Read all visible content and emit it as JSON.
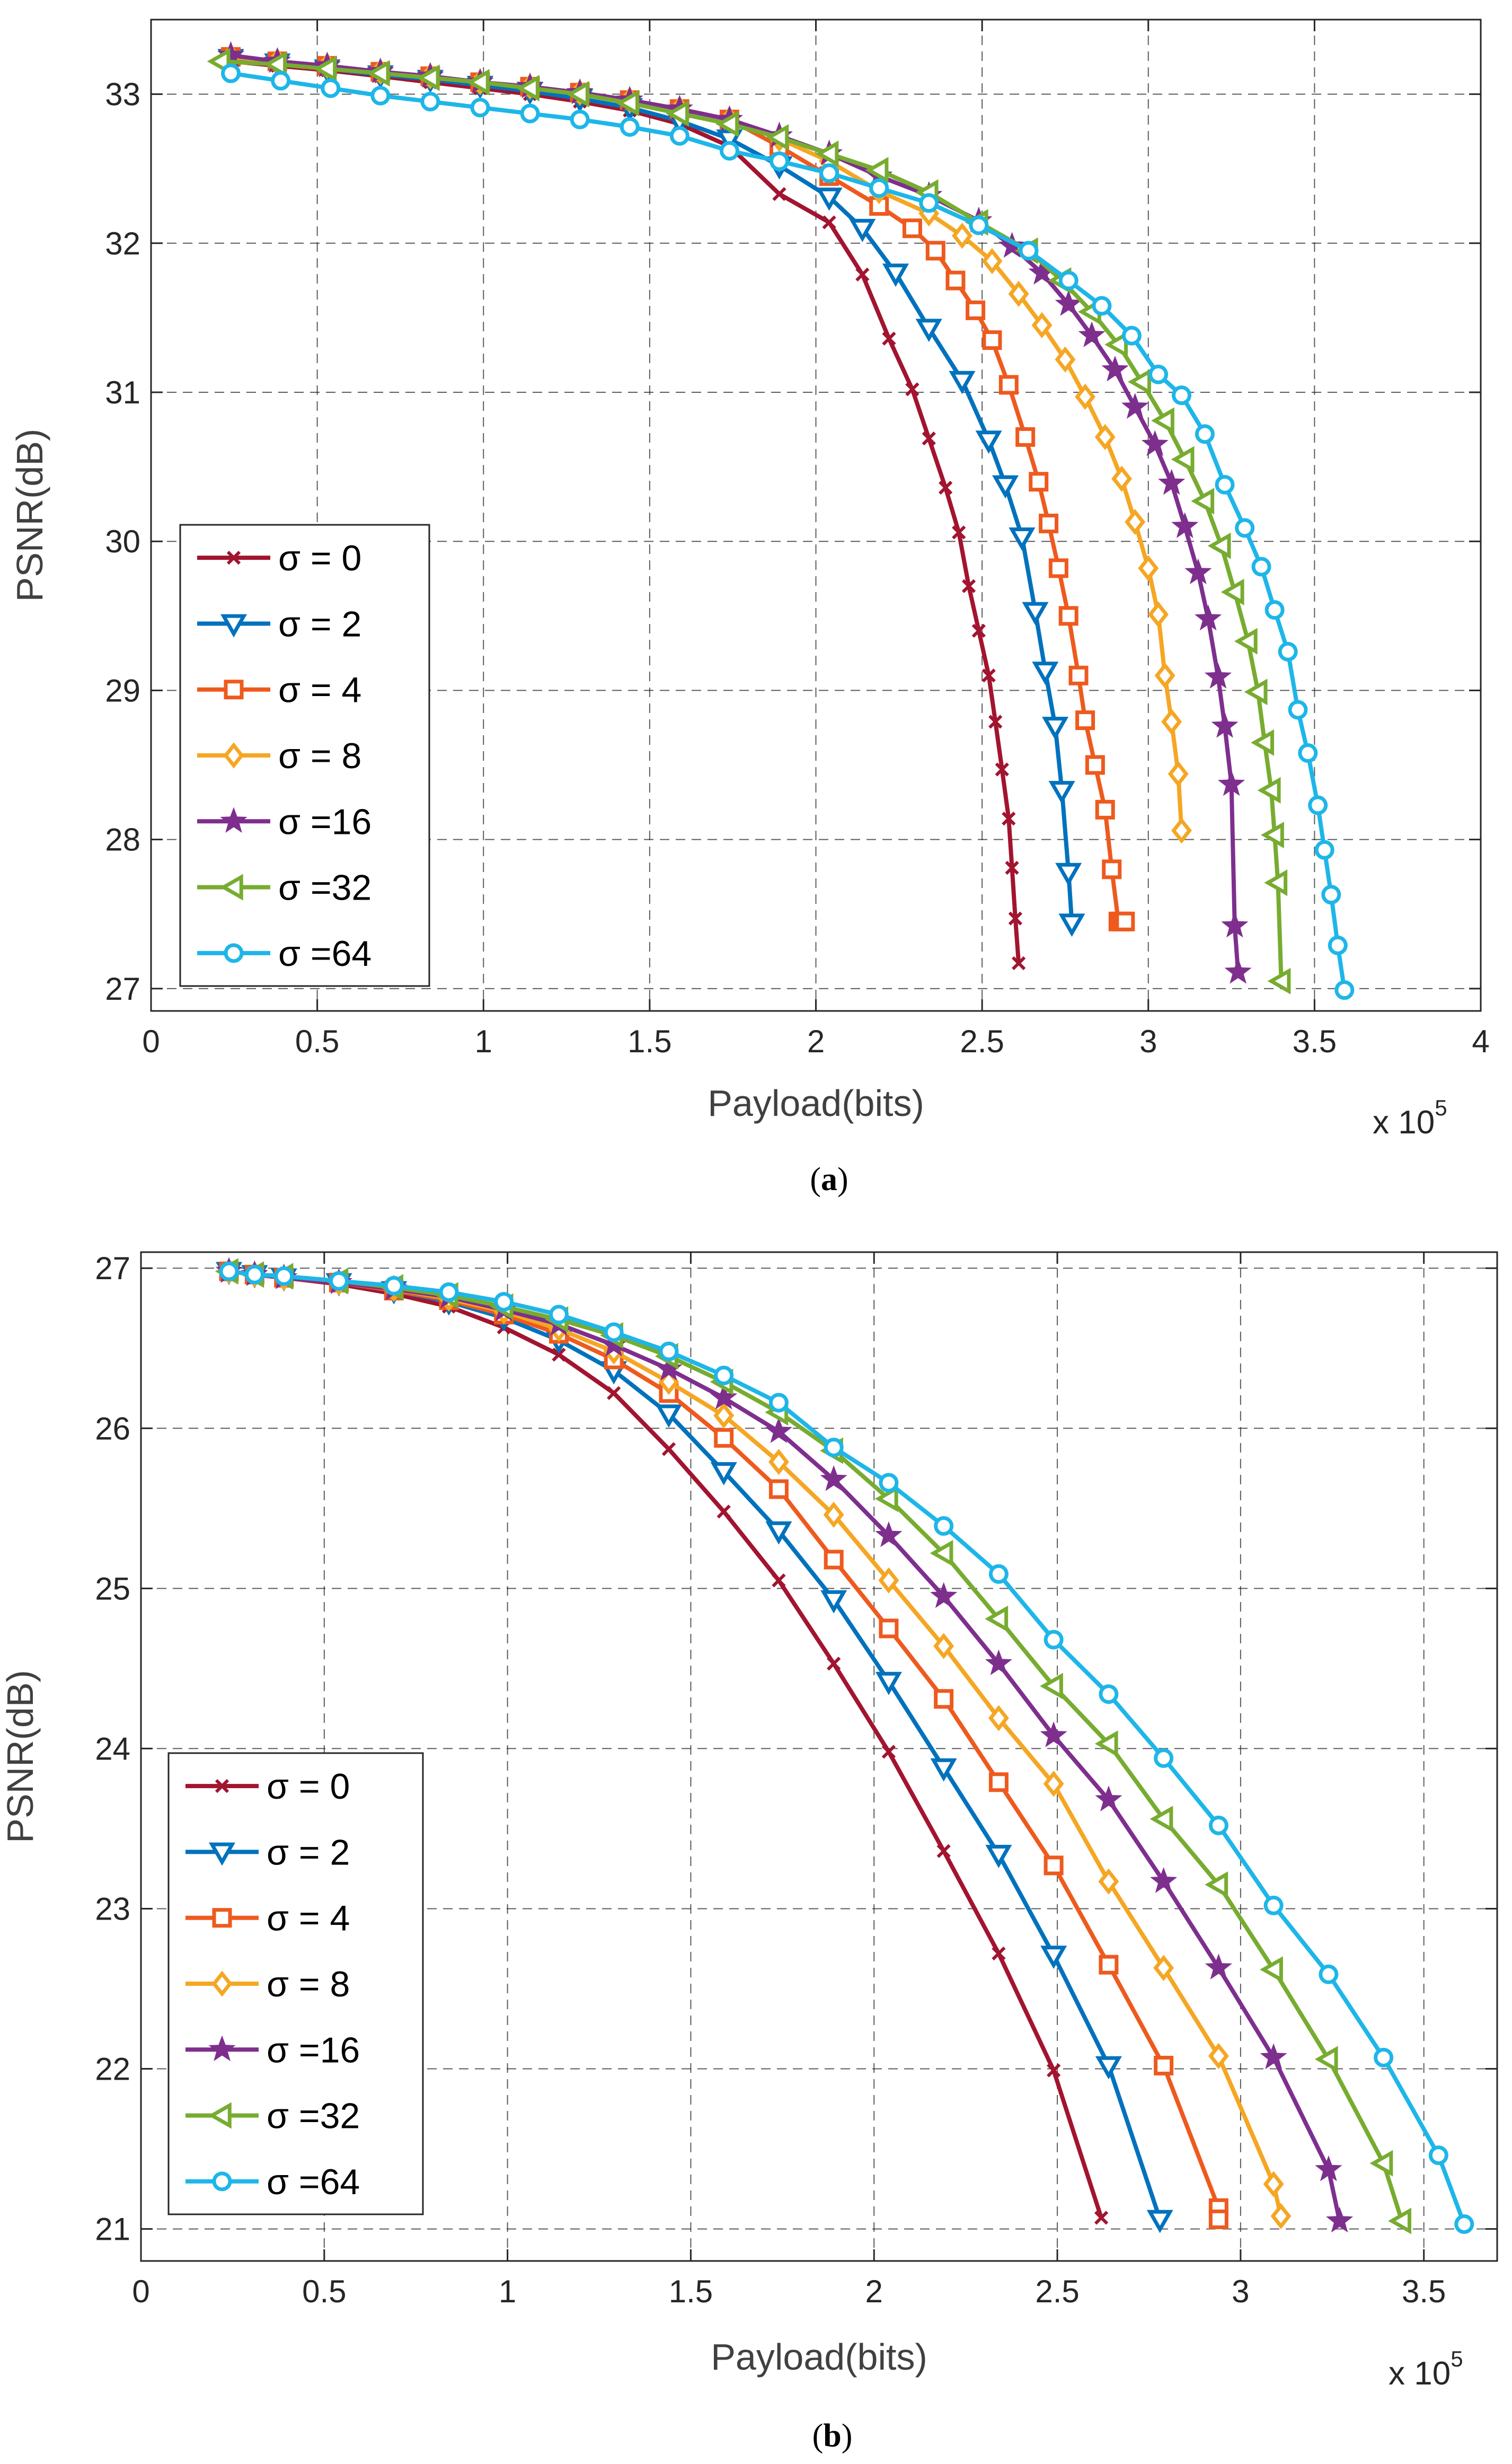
{
  "chart_data": [
    {
      "type": "line",
      "panel": "a",
      "caption": "(a)",
      "caption_letter": "a",
      "xlabel": "Payload(bits)",
      "ylabel": "PSNR(dB)",
      "x_multiplier_prefix": "x 10",
      "x_multiplier_exponent": "5",
      "xlim": [
        0,
        4
      ],
      "ylim": [
        26.85,
        33.5
      ],
      "xticks": [
        0,
        0.5,
        1,
        1.5,
        2,
        2.5,
        3,
        3.5,
        4
      ],
      "xtick_labels": [
        "0",
        "0.5",
        "1",
        "1.5",
        "2",
        "2.5",
        "3",
        "3.5",
        "4"
      ],
      "yticks": [
        27,
        28,
        29,
        30,
        31,
        32,
        33
      ],
      "ytick_labels": [
        "27",
        "28",
        "29",
        "30",
        "31",
        "32",
        "33"
      ],
      "grid": true,
      "legend_position": "lower-left",
      "series": [
        {
          "name": "σ = 0",
          "color": "#A2142F",
          "marker": "x",
          "x": [
            0.24,
            0.38,
            0.53,
            0.69,
            0.84,
            0.99,
            1.14,
            1.29,
            1.44,
            1.59,
            1.74,
            1.89,
            2.04,
            2.14,
            2.22,
            2.29,
            2.34,
            2.39,
            2.43,
            2.46,
            2.49,
            2.52,
            2.54,
            2.56,
            2.58,
            2.59,
            2.6,
            2.61
          ],
          "y": [
            33.22,
            33.19,
            33.16,
            33.12,
            33.08,
            33.04,
            33.0,
            32.95,
            32.89,
            32.8,
            32.65,
            32.33,
            32.14,
            31.79,
            31.36,
            31.02,
            30.69,
            30.36,
            30.06,
            29.7,
            29.4,
            29.1,
            28.79,
            28.47,
            28.14,
            27.81,
            27.47,
            27.17
          ]
        },
        {
          "name": "σ = 2",
          "color": "#0072BD",
          "marker": "triangle-down",
          "x": [
            0.24,
            0.38,
            0.53,
            0.69,
            0.84,
            0.99,
            1.14,
            1.29,
            1.44,
            1.59,
            1.74,
            1.89,
            2.04,
            2.14,
            2.24,
            2.34,
            2.44,
            2.52,
            2.57,
            2.62,
            2.66,
            2.69,
            2.72,
            2.74,
            2.76,
            2.77
          ],
          "y": [
            33.24,
            33.21,
            33.17,
            33.13,
            33.1,
            33.06,
            33.02,
            32.97,
            32.91,
            32.82,
            32.7,
            32.52,
            32.31,
            32.1,
            31.8,
            31.43,
            31.08,
            30.68,
            30.38,
            30.03,
            29.53,
            29.13,
            28.76,
            28.33,
            27.78,
            27.44
          ]
        },
        {
          "name": "σ = 4",
          "color": "#EE5A1E",
          "marker": "square",
          "x": [
            0.24,
            0.38,
            0.53,
            0.69,
            0.84,
            0.99,
            1.14,
            1.29,
            1.44,
            1.59,
            1.74,
            1.89,
            2.04,
            2.19,
            2.29,
            2.36,
            2.42,
            2.48,
            2.53,
            2.58,
            2.63,
            2.67,
            2.7,
            2.73,
            2.76,
            2.79,
            2.81,
            2.84,
            2.87,
            2.89,
            2.91,
            2.92,
            2.93
          ],
          "y": [
            33.25,
            33.22,
            33.19,
            33.15,
            33.12,
            33.08,
            33.05,
            33.01,
            32.96,
            32.9,
            32.83,
            32.65,
            32.45,
            32.25,
            32.1,
            31.95,
            31.75,
            31.55,
            31.35,
            31.05,
            30.7,
            30.4,
            30.12,
            29.82,
            29.5,
            29.1,
            28.8,
            28.5,
            28.2,
            27.8,
            27.45,
            27.45,
            27.45
          ]
        },
        {
          "name": "σ = 8",
          "color": "#F5A623",
          "marker": "diamond",
          "x": [
            0.24,
            0.38,
            0.53,
            0.69,
            0.84,
            0.99,
            1.14,
            1.29,
            1.44,
            1.59,
            1.74,
            1.89,
            2.04,
            2.19,
            2.34,
            2.44,
            2.53,
            2.61,
            2.68,
            2.75,
            2.81,
            2.87,
            2.92,
            2.96,
            3.0,
            3.03,
            3.05,
            3.07,
            3.09,
            3.1
          ],
          "y": [
            33.25,
            33.22,
            33.19,
            33.15,
            33.12,
            33.08,
            33.05,
            33.01,
            32.96,
            32.9,
            32.83,
            32.7,
            32.55,
            32.35,
            32.2,
            32.05,
            31.88,
            31.66,
            31.45,
            31.22,
            30.97,
            30.7,
            30.42,
            30.13,
            29.82,
            29.51,
            29.1,
            28.79,
            28.44,
            28.06
          ]
        },
        {
          "name": "σ =16",
          "color": "#7E2F8E",
          "marker": "star",
          "x": [
            0.24,
            0.38,
            0.53,
            0.69,
            0.84,
            0.99,
            1.14,
            1.29,
            1.44,
            1.59,
            1.74,
            1.89,
            2.04,
            2.19,
            2.34,
            2.49,
            2.59,
            2.68,
            2.76,
            2.83,
            2.9,
            2.96,
            3.02,
            3.07,
            3.11,
            3.15,
            3.18,
            3.21,
            3.23,
            3.25,
            3.26,
            3.27
          ],
          "y": [
            33.26,
            33.22,
            33.19,
            33.15,
            33.12,
            33.08,
            33.05,
            33.01,
            32.96,
            32.9,
            32.83,
            32.72,
            32.6,
            32.45,
            32.32,
            32.15,
            31.98,
            31.8,
            31.59,
            31.38,
            31.15,
            30.9,
            30.65,
            30.39,
            30.1,
            29.79,
            29.48,
            29.09,
            28.76,
            28.37,
            27.42,
            27.11
          ]
        },
        {
          "name": "σ =32",
          "color": "#77AC30",
          "marker": "triangle-left",
          "x": [
            0.21,
            0.38,
            0.53,
            0.69,
            0.84,
            0.99,
            1.14,
            1.29,
            1.44,
            1.59,
            1.74,
            1.89,
            2.04,
            2.19,
            2.34,
            2.49,
            2.64,
            2.74,
            2.83,
            2.91,
            2.98,
            3.05,
            3.11,
            3.17,
            3.22,
            3.26,
            3.3,
            3.33,
            3.35,
            3.37,
            3.38,
            3.39,
            3.4
          ],
          "y": [
            33.22,
            33.2,
            33.17,
            33.14,
            33.11,
            33.08,
            33.04,
            33.0,
            32.94,
            32.87,
            32.8,
            32.71,
            32.6,
            32.49,
            32.34,
            32.14,
            31.95,
            31.75,
            31.54,
            31.32,
            31.07,
            30.81,
            30.55,
            30.27,
            29.97,
            29.66,
            29.33,
            28.99,
            28.65,
            28.33,
            28.03,
            27.71,
            27.05
          ]
        },
        {
          "name": "σ =64",
          "color": "#1EB6E8",
          "marker": "circle",
          "x": [
            0.24,
            0.39,
            0.54,
            0.69,
            0.84,
            0.99,
            1.14,
            1.29,
            1.44,
            1.59,
            1.74,
            1.89,
            2.04,
            2.19,
            2.34,
            2.49,
            2.64,
            2.76,
            2.86,
            2.95,
            3.03,
            3.1,
            3.17,
            3.23,
            3.29,
            3.34,
            3.38,
            3.42,
            3.45,
            3.48,
            3.51,
            3.53,
            3.55,
            3.57,
            3.59
          ],
          "y": [
            33.14,
            33.09,
            33.04,
            32.99,
            32.95,
            32.91,
            32.87,
            32.83,
            32.78,
            32.72,
            32.62,
            32.55,
            32.47,
            32.37,
            32.27,
            32.12,
            31.95,
            31.75,
            31.58,
            31.38,
            31.12,
            30.98,
            30.72,
            30.38,
            30.09,
            29.83,
            29.54,
            29.26,
            28.87,
            28.58,
            28.23,
            27.93,
            27.63,
            27.29,
            26.99
          ]
        }
      ]
    },
    {
      "type": "line",
      "panel": "b",
      "caption": "(b)",
      "caption_letter": "b",
      "xlabel": "Payload(bits)",
      "ylabel": "PSNR(dB)",
      "x_multiplier_prefix": "x 10",
      "x_multiplier_exponent": "5",
      "xlim": [
        0,
        3.7
      ],
      "ylim": [
        20.8,
        27.1
      ],
      "xticks": [
        0,
        0.5,
        1,
        1.5,
        2,
        2.5,
        3,
        3.5
      ],
      "xtick_labels": [
        "0",
        "0.5",
        "1",
        "1.5",
        "2",
        "2.5",
        "3",
        "3.5"
      ],
      "yticks": [
        21,
        22,
        23,
        24,
        25,
        26,
        27
      ],
      "ytick_labels": [
        "21",
        "22",
        "23",
        "24",
        "25",
        "26",
        "27"
      ],
      "grid": true,
      "legend_position": "lower-left",
      "series": [
        {
          "name": "σ = 0",
          "color": "#A2142F",
          "marker": "x",
          "x": [
            0.24,
            0.31,
            0.39,
            0.54,
            0.69,
            0.84,
            0.99,
            1.14,
            1.29,
            1.44,
            1.59,
            1.74,
            1.89,
            2.04,
            2.19,
            2.34,
            2.49,
            2.62
          ],
          "y": [
            26.98,
            26.96,
            26.94,
            26.9,
            26.84,
            26.76,
            26.63,
            26.46,
            26.22,
            25.87,
            25.48,
            25.05,
            24.53,
            23.98,
            23.36,
            22.72,
            21.99,
            21.07
          ]
        },
        {
          "name": "σ = 2",
          "color": "#0072BD",
          "marker": "triangle-down",
          "x": [
            0.24,
            0.31,
            0.39,
            0.54,
            0.69,
            0.84,
            0.99,
            1.14,
            1.29,
            1.44,
            1.59,
            1.74,
            1.89,
            2.04,
            2.19,
            2.34,
            2.49,
            2.64,
            2.78
          ],
          "y": [
            26.98,
            26.96,
            26.94,
            26.91,
            26.86,
            26.79,
            26.69,
            26.55,
            26.36,
            26.09,
            25.73,
            25.36,
            24.93,
            24.42,
            23.88,
            23.34,
            22.71,
            22.02,
            21.06
          ]
        },
        {
          "name": "σ = 4",
          "color": "#EE5A1E",
          "marker": "square",
          "x": [
            0.24,
            0.31,
            0.39,
            0.54,
            0.69,
            0.84,
            0.99,
            1.14,
            1.29,
            1.44,
            1.59,
            1.74,
            1.89,
            2.04,
            2.19,
            2.34,
            2.49,
            2.64,
            2.79,
            2.94,
            2.94
          ],
          "y": [
            26.98,
            26.96,
            26.94,
            26.91,
            26.86,
            26.8,
            26.71,
            26.59,
            26.43,
            26.22,
            25.94,
            25.62,
            25.18,
            24.75,
            24.31,
            23.79,
            23.27,
            22.65,
            22.02,
            21.13,
            21.06
          ]
        },
        {
          "name": "σ = 8",
          "color": "#F5A623",
          "marker": "diamond",
          "x": [
            0.24,
            0.31,
            0.39,
            0.54,
            0.69,
            0.84,
            0.99,
            1.14,
            1.29,
            1.44,
            1.59,
            1.74,
            1.89,
            2.04,
            2.19,
            2.34,
            2.49,
            2.64,
            2.79,
            2.94,
            3.09,
            3.11
          ],
          "y": [
            26.98,
            26.96,
            26.94,
            26.91,
            26.87,
            26.81,
            26.73,
            26.62,
            26.48,
            26.29,
            26.08,
            25.79,
            25.46,
            25.05,
            24.64,
            24.19,
            23.78,
            23.17,
            22.63,
            22.08,
            21.28,
            21.08
          ]
        },
        {
          "name": "σ =16",
          "color": "#7E2F8E",
          "marker": "star",
          "x": [
            0.24,
            0.31,
            0.39,
            0.54,
            0.69,
            0.84,
            0.99,
            1.14,
            1.29,
            1.44,
            1.59,
            1.74,
            1.89,
            2.04,
            2.19,
            2.34,
            2.49,
            2.64,
            2.79,
            2.94,
            3.09,
            3.24,
            3.27
          ],
          "y": [
            26.98,
            26.96,
            26.94,
            26.91,
            26.87,
            26.82,
            26.74,
            26.65,
            26.52,
            26.37,
            26.19,
            25.98,
            25.68,
            25.33,
            24.95,
            24.53,
            24.08,
            23.68,
            23.17,
            22.63,
            22.07,
            21.37,
            21.05
          ]
        },
        {
          "name": "σ =32",
          "color": "#77AC30",
          "marker": "triangle-left",
          "x": [
            0.24,
            0.31,
            0.39,
            0.54,
            0.69,
            0.84,
            0.99,
            1.14,
            1.29,
            1.44,
            1.59,
            1.74,
            1.89,
            2.04,
            2.19,
            2.34,
            2.49,
            2.64,
            2.79,
            2.94,
            3.09,
            3.24,
            3.39,
            3.44
          ],
          "y": [
            26.98,
            26.96,
            26.95,
            26.92,
            26.88,
            26.83,
            26.76,
            26.68,
            26.58,
            26.45,
            26.29,
            26.1,
            25.86,
            25.56,
            25.22,
            24.81,
            24.39,
            24.03,
            23.56,
            23.15,
            22.62,
            22.06,
            21.41,
            21.05
          ]
        },
        {
          "name": "σ =64",
          "color": "#1EB6E8",
          "marker": "circle",
          "x": [
            0.24,
            0.31,
            0.39,
            0.54,
            0.69,
            0.84,
            0.99,
            1.14,
            1.29,
            1.44,
            1.59,
            1.74,
            1.89,
            2.04,
            2.19,
            2.34,
            2.49,
            2.64,
            2.79,
            2.94,
            3.09,
            3.24,
            3.39,
            3.54,
            3.61
          ],
          "y": [
            26.98,
            26.96,
            26.95,
            26.92,
            26.89,
            26.85,
            26.79,
            26.71,
            26.6,
            26.48,
            26.33,
            26.16,
            25.88,
            25.66,
            25.39,
            25.09,
            24.68,
            24.34,
            23.94,
            23.52,
            23.02,
            22.59,
            22.07,
            21.46,
            21.03
          ]
        }
      ]
    }
  ]
}
